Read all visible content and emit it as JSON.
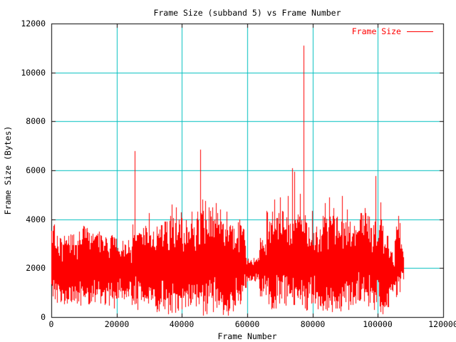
{
  "chart_data": {
    "type": "line",
    "title": "Frame Size (subband 5) vs Frame Number",
    "xlabel": "Frame Number",
    "ylabel": "Frame Size (Bytes)",
    "xlim": [
      0,
      120000
    ],
    "ylim": [
      0,
      12000
    ],
    "xticks": [
      0,
      20000,
      40000,
      60000,
      80000,
      100000,
      120000
    ],
    "yticks": [
      0,
      2000,
      4000,
      6000,
      8000,
      10000,
      12000
    ],
    "xtick_labels": [
      "0",
      "20000",
      "40000",
      "60000",
      "80000",
      "100000",
      "120000"
    ],
    "ytick_labels": [
      "0",
      "2000",
      "4000",
      "6000",
      "8000",
      "10000",
      "12000"
    ],
    "grid": true,
    "legend": {
      "position": "top-right",
      "entries": [
        {
          "label": "Frame Size",
          "color": "#ff0000"
        }
      ]
    },
    "colors": {
      "background": "#ffffff",
      "border": "#000000",
      "grid": "#00c0c0",
      "text": "#000000"
    },
    "series": [
      {
        "name": "Frame Size",
        "color": "#ff0000",
        "style": "noisy-line",
        "seed": 20,
        "x_start": 0,
        "x_end": 107800,
        "envelope_segments_comment": "dense noise band: [frame_start, frame_end, min_bytes, max_bytes]",
        "envelope": [
          [
            0,
            1500,
            700,
            3780
          ],
          [
            1500,
            8000,
            500,
            3400
          ],
          [
            8000,
            12000,
            350,
            3750
          ],
          [
            12000,
            16500,
            450,
            3500
          ],
          [
            16500,
            20000,
            250,
            3400
          ],
          [
            20000,
            24500,
            650,
            3150
          ],
          [
            24500,
            27500,
            250,
            4000
          ],
          [
            27500,
            33000,
            200,
            3800
          ],
          [
            33000,
            36000,
            100,
            4050
          ],
          [
            36000,
            40000,
            150,
            4300
          ],
          [
            40000,
            44000,
            250,
            4050
          ],
          [
            44000,
            47500,
            30,
            4350
          ],
          [
            47500,
            52000,
            20,
            4500
          ],
          [
            52000,
            56000,
            40,
            4250
          ],
          [
            56000,
            59500,
            400,
            3950
          ],
          [
            59500,
            63500,
            1450,
            2500
          ],
          [
            63500,
            66000,
            800,
            3350
          ],
          [
            66000,
            71000,
            250,
            4350
          ],
          [
            71000,
            78000,
            200,
            4300
          ],
          [
            78000,
            83000,
            250,
            4050
          ],
          [
            83000,
            88000,
            150,
            4250
          ],
          [
            88000,
            93000,
            200,
            4050
          ],
          [
            93000,
            98000,
            400,
            4350
          ],
          [
            98000,
            101500,
            100,
            4000
          ],
          [
            101500,
            103500,
            150,
            3400
          ],
          [
            103500,
            105000,
            900,
            2700
          ],
          [
            105000,
            106800,
            700,
            3950
          ],
          [
            106800,
            107800,
            1500,
            3000
          ]
        ],
        "spikes_comment": "isolated peaks above the noise band: [frame, bytes]",
        "spikes": [
          [
            900,
            3780
          ],
          [
            9800,
            3740
          ],
          [
            25500,
            6790
          ],
          [
            29800,
            4250
          ],
          [
            36800,
            4600
          ],
          [
            38200,
            4500
          ],
          [
            43000,
            4300
          ],
          [
            45600,
            6850
          ],
          [
            46300,
            4800
          ],
          [
            47200,
            4750
          ],
          [
            50400,
            4650
          ],
          [
            53600,
            4300
          ],
          [
            57500,
            4000
          ],
          [
            65800,
            4350
          ],
          [
            68300,
            4800
          ],
          [
            70100,
            4900
          ],
          [
            72400,
            4950
          ],
          [
            73800,
            6100
          ],
          [
            74400,
            5950
          ],
          [
            76100,
            5050
          ],
          [
            77200,
            11100
          ],
          [
            79900,
            4350
          ],
          [
            83700,
            4650
          ],
          [
            85100,
            4900
          ],
          [
            86300,
            4450
          ],
          [
            89100,
            4950
          ],
          [
            90500,
            4400
          ],
          [
            96100,
            4450
          ],
          [
            99300,
            5770
          ],
          [
            100700,
            4700
          ],
          [
            106300,
            4150
          ]
        ]
      }
    ]
  }
}
